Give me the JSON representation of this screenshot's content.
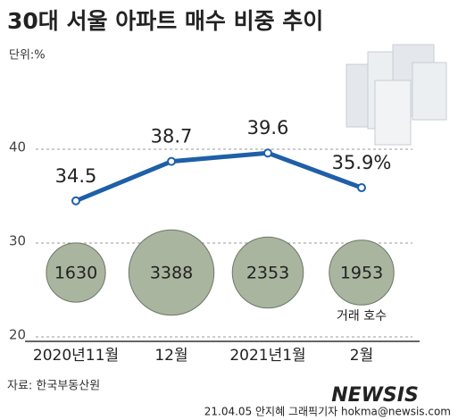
{
  "chart_data": {
    "type": "line",
    "title": "30대 서울 아파트 매수 비중 추이",
    "unit_label": "단위:%",
    "categories": [
      "2020년11월",
      "12월",
      "2021년1월",
      "2월"
    ],
    "series": [
      {
        "color": "#1f5fa8",
        "values": [
          34.5,
          38.7,
          39.6,
          35.9
        ],
        "value_labels": [
          "34.5",
          "38.7",
          "39.6",
          "35.9%"
        ]
      },
      {
        "name": "거래 호수",
        "type": "bubble",
        "color": "#a9b59f",
        "values": [
          1630,
          3388,
          2353,
          1953
        ]
      }
    ],
    "ylim": [
      20,
      45
    ],
    "yticks": [
      20,
      30,
      40
    ],
    "grid": true,
    "source": "자료: 한국부동산원",
    "credit": "21.04.05 안지혜 그래픽기자 hokma@newsis.com",
    "watermark": "NEWSIS"
  }
}
